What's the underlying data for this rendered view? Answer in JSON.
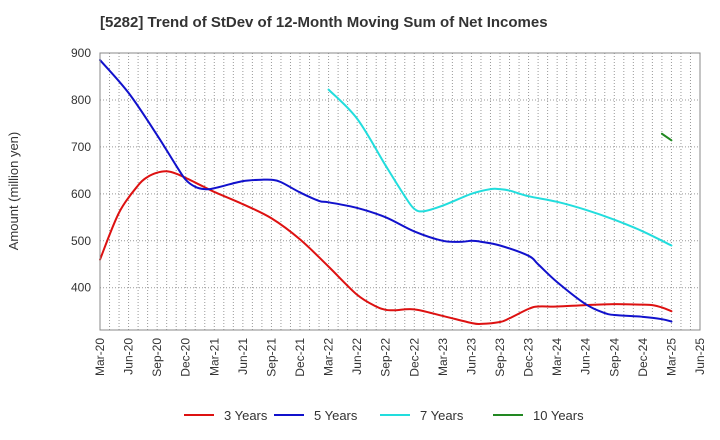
{
  "chart_data": {
    "type": "line",
    "title": "[5282]  Trend of StDev of 12-Month Moving Sum of Net Incomes",
    "xlabel": "",
    "ylabel": "Amount (million yen)",
    "ylim": [
      310,
      900
    ],
    "yticks": [
      400,
      500,
      600,
      700,
      800,
      900
    ],
    "xticks": [
      "Mar-20",
      "Jun-20",
      "Sep-20",
      "Dec-20",
      "Mar-21",
      "Jun-21",
      "Sep-21",
      "Dec-21",
      "Mar-22",
      "Jun-22",
      "Sep-22",
      "Dec-22",
      "Mar-23",
      "Jun-23",
      "Sep-23",
      "Dec-23",
      "Mar-24",
      "Jun-24",
      "Sep-24",
      "Dec-24",
      "Mar-25",
      "Jun-25"
    ],
    "grid": true,
    "legend_position": "bottom",
    "series": [
      {
        "name": "3 Years",
        "color": "#dd1111",
        "x": [
          "Mar-20",
          "May-20",
          "Jul-20",
          "Aug-20",
          "Sep-20",
          "Oct-20",
          "Nov-20",
          "Dec-20",
          "Jan-21",
          "Feb-21",
          "Mar-21",
          "Jun-21",
          "Sep-21",
          "Dec-21",
          "Mar-22",
          "Jun-22",
          "Aug-22",
          "Sep-22",
          "Oct-22",
          "Dec-22",
          "Mar-23",
          "Jun-23",
          "Jul-23",
          "Sep-23",
          "Oct-23",
          "Dec-23",
          "Jan-24",
          "Mar-24",
          "Jun-24",
          "Sep-24",
          "Dec-24",
          "Jan-25",
          "Feb-25",
          "Mar-25"
        ],
        "values": [
          460,
          560,
          618,
          636,
          645,
          648,
          643,
          634,
          624,
          614,
          604,
          578,
          548,
          503,
          445,
          385,
          360,
          353,
          352,
          354,
          340,
          325,
          323,
          327,
          335,
          355,
          360,
          360,
          363,
          365,
          364,
          363,
          358,
          350
        ]
      },
      {
        "name": "5 Years",
        "color": "#1111cc",
        "x": [
          "Mar-20",
          "Jun-20",
          "Sep-20",
          "Nov-20",
          "Dec-20",
          "Jan-21",
          "Feb-21",
          "Mar-21",
          "Jun-21",
          "Aug-21",
          "Sep-21",
          "Oct-21",
          "Dec-21",
          "Feb-22",
          "Mar-22",
          "Jun-22",
          "Sep-22",
          "Dec-22",
          "Mar-23",
          "May-23",
          "Jun-23",
          "Jul-23",
          "Sep-23",
          "Dec-23",
          "Jan-24",
          "Mar-24",
          "Jun-24",
          "Aug-24",
          "Sep-24",
          "Dec-24",
          "Feb-25",
          "Mar-25"
        ],
        "values": [
          885,
          815,
          725,
          660,
          630,
          615,
          610,
          612,
          627,
          630,
          630,
          625,
          603,
          585,
          582,
          570,
          550,
          520,
          500,
          498,
          500,
          498,
          490,
          468,
          450,
          412,
          365,
          346,
          342,
          338,
          333,
          328
        ]
      },
      {
        "name": "7 Years",
        "color": "#22dddd",
        "x": [
          "Mar-22",
          "Jun-22",
          "Sep-22",
          "Nov-22",
          "Dec-22",
          "Jan-23",
          "Mar-23",
          "Jun-23",
          "Aug-23",
          "Sep-23",
          "Oct-23",
          "Dec-23",
          "Mar-24",
          "Jun-24",
          "Sep-24",
          "Dec-24",
          "Mar-25"
        ],
        "values": [
          822,
          760,
          660,
          595,
          568,
          563,
          575,
          600,
          610,
          610,
          607,
          595,
          583,
          566,
          545,
          520,
          490
        ]
      },
      {
        "name": "10 Years",
        "color": "#228822",
        "x": [
          "Feb-25",
          "Mar-25"
        ],
        "values": [
          728,
          714
        ]
      }
    ]
  }
}
